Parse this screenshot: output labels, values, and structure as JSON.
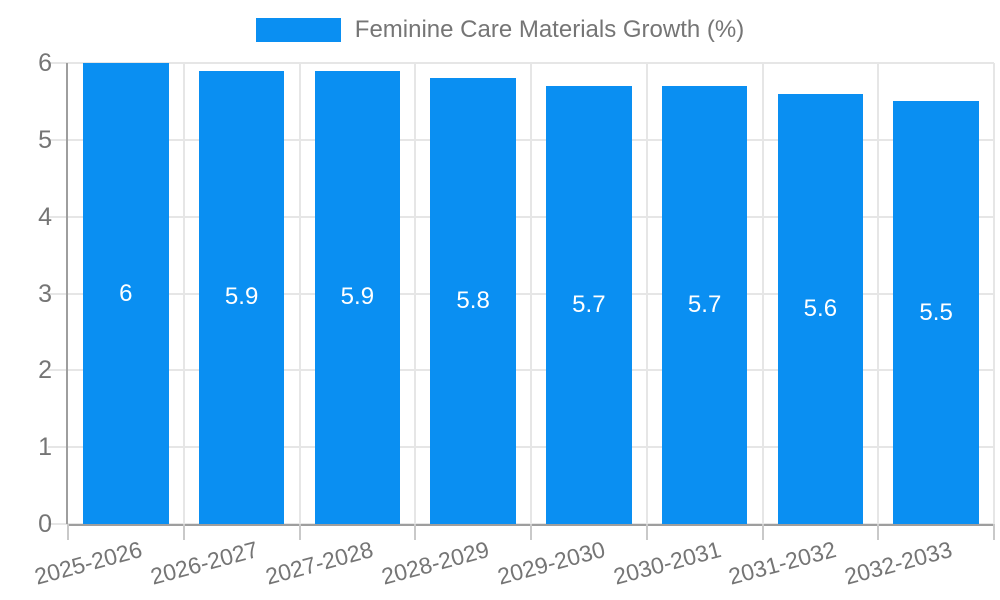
{
  "legend": {
    "label": "Feminine Care Materials Growth (%)"
  },
  "colors": {
    "bar": "#0a8ff2",
    "grid": "#e6e6e6",
    "axis": "#9e9e9e",
    "x_tick": "#c9c9c9",
    "text": "#757575",
    "value_text": "#ffffff",
    "background": "#ffffff"
  },
  "chart_data": {
    "type": "bar",
    "title": "Feminine Care Materials Growth (%)",
    "categories": [
      "2025-2026",
      "2026-2027",
      "2027-2028",
      "2028-2029",
      "2029-2030",
      "2030-2031",
      "2031-2032",
      "2032-2033"
    ],
    "values": [
      6,
      5.9,
      5.9,
      5.8,
      5.7,
      5.7,
      5.6,
      5.5
    ],
    "value_labels": [
      "6",
      "5.9",
      "5.9",
      "5.8",
      "5.7",
      "5.7",
      "5.6",
      "5.5"
    ],
    "xlabel": "",
    "ylabel": "",
    "ylim": [
      0,
      6
    ],
    "yticks": [
      0,
      1,
      2,
      3,
      4,
      5,
      6
    ],
    "grid": true,
    "bar_color": "#0a8ff2",
    "legend_position": "top-center",
    "x_label_rotation_deg": -15
  }
}
